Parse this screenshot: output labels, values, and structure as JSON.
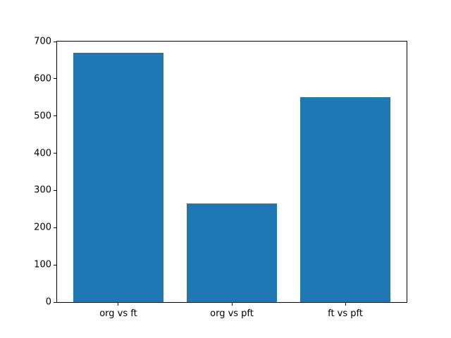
{
  "chart_data": {
    "type": "bar",
    "categories": [
      "org vs ft",
      "org vs pft",
      "ft vs pft"
    ],
    "values": [
      670,
      265,
      550
    ],
    "title": "",
    "xlabel": "",
    "ylabel": "",
    "ylim": [
      0,
      700
    ],
    "ytick_step": 100,
    "yticks": [
      0,
      100,
      200,
      300,
      400,
      500,
      600,
      700
    ],
    "xlim": [
      -0.54,
      2.54
    ],
    "bar_width": 0.8,
    "bar_color": "#1f77b4",
    "grid": false,
    "legend": null,
    "background_color": "#ffffff",
    "spine_color": "#000000",
    "text_color": "#000000"
  }
}
